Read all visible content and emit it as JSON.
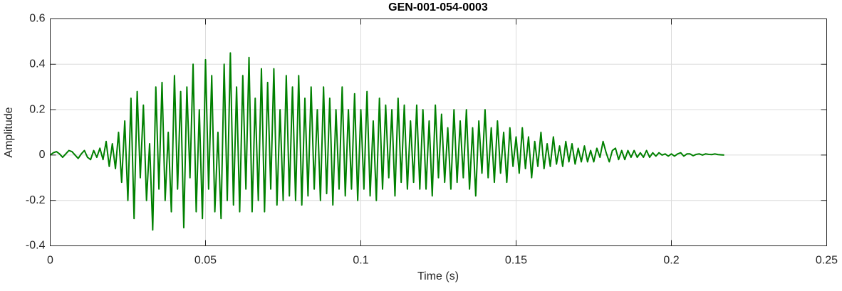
{
  "chart_data": {
    "type": "line",
    "title": "GEN-001-054-0003",
    "x_label": "Time (s)",
    "y_label": "Amplitude",
    "color": "#008000",
    "grid": true,
    "xlim": [
      0,
      0.25
    ],
    "ylim": [
      -0.4,
      0.6
    ],
    "xticks": [
      0,
      0.05,
      0.1,
      0.15,
      0.2,
      0.25
    ],
    "yticks": [
      -0.4,
      -0.2,
      0,
      0.2,
      0.4,
      0.6
    ],
    "x": [
      0,
      0.001,
      0.002,
      0.003,
      0.004,
      0.005,
      0.006,
      0.007,
      0.008,
      0.009,
      0.01,
      0.011,
      0.012,
      0.013,
      0.014,
      0.015,
      0.016,
      0.017,
      0.018,
      0.019,
      0.02,
      0.021,
      0.022,
      0.023,
      0.024,
      0.025,
      0.026,
      0.027,
      0.028,
      0.029,
      0.03,
      0.031,
      0.032,
      0.033,
      0.034,
      0.035,
      0.036,
      0.037,
      0.038,
      0.039,
      0.04,
      0.041,
      0.042,
      0.043,
      0.044,
      0.045,
      0.046,
      0.047,
      0.048,
      0.049,
      0.05,
      0.051,
      0.052,
      0.053,
      0.054,
      0.055,
      0.056,
      0.057,
      0.058,
      0.059,
      0.06,
      0.061,
      0.062,
      0.063,
      0.064,
      0.065,
      0.066,
      0.067,
      0.068,
      0.069,
      0.07,
      0.071,
      0.072,
      0.073,
      0.074,
      0.075,
      0.076,
      0.077,
      0.078,
      0.079,
      0.08,
      0.081,
      0.082,
      0.083,
      0.084,
      0.085,
      0.086,
      0.087,
      0.088,
      0.089,
      0.09,
      0.091,
      0.092,
      0.093,
      0.094,
      0.095,
      0.096,
      0.097,
      0.098,
      0.099,
      0.1,
      0.101,
      0.102,
      0.103,
      0.104,
      0.105,
      0.106,
      0.107,
      0.108,
      0.109,
      0.11,
      0.111,
      0.112,
      0.113,
      0.114,
      0.115,
      0.116,
      0.117,
      0.118,
      0.119,
      0.12,
      0.121,
      0.122,
      0.123,
      0.124,
      0.125,
      0.126,
      0.127,
      0.128,
      0.129,
      0.13,
      0.131,
      0.132,
      0.133,
      0.134,
      0.135,
      0.136,
      0.137,
      0.138,
      0.139,
      0.14,
      0.141,
      0.142,
      0.143,
      0.144,
      0.145,
      0.146,
      0.147,
      0.148,
      0.149,
      0.15,
      0.151,
      0.152,
      0.153,
      0.154,
      0.155,
      0.156,
      0.157,
      0.158,
      0.159,
      0.16,
      0.161,
      0.162,
      0.163,
      0.164,
      0.165,
      0.166,
      0.167,
      0.168,
      0.169,
      0.17,
      0.171,
      0.172,
      0.173,
      0.174,
      0.175,
      0.176,
      0.177,
      0.178,
      0.179,
      0.18,
      0.181,
      0.182,
      0.183,
      0.184,
      0.185,
      0.186,
      0.187,
      0.188,
      0.189,
      0.19,
      0.191,
      0.192,
      0.193,
      0.194,
      0.195,
      0.196,
      0.197,
      0.198,
      0.199,
      0.2,
      0.201,
      0.202,
      0.203,
      0.204,
      0.205,
      0.206,
      0.207,
      0.208,
      0.209,
      0.21,
      0.211,
      0.212,
      0.213,
      0.214,
      0.215,
      0.216,
      0.217
    ],
    "values": [
      0,
      0.01,
      0.015,
      0.005,
      -0.01,
      0.005,
      0.02,
      0.015,
      0,
      -0.015,
      0.005,
      0.02,
      -0.01,
      -0.02,
      0.02,
      -0.01,
      0.03,
      -0.02,
      0.06,
      -0.05,
      0.05,
      -0.06,
      0.1,
      -0.12,
      0.15,
      -0.2,
      0.25,
      -0.28,
      0.28,
      -0.1,
      0.22,
      -0.2,
      0.05,
      -0.33,
      0.3,
      -0.15,
      0.32,
      -0.2,
      0.1,
      -0.25,
      0.35,
      -0.15,
      0.28,
      -0.32,
      0.3,
      -0.1,
      0.4,
      -0.25,
      0.2,
      -0.28,
      0.42,
      -0.15,
      0.35,
      -0.25,
      0.1,
      -0.28,
      0.4,
      -0.2,
      0.45,
      -0.22,
      0.3,
      -0.25,
      0.35,
      -0.15,
      0.43,
      -0.25,
      0.25,
      -0.2,
      0.38,
      -0.25,
      0.32,
      -0.15,
      0.38,
      -0.22,
      0.2,
      -0.2,
      0.35,
      -0.18,
      0.3,
      -0.2,
      0.35,
      -0.22,
      0.25,
      -0.18,
      0.3,
      -0.15,
      0.2,
      -0.2,
      0.3,
      -0.17,
      0.25,
      -0.22,
      0.2,
      -0.15,
      0.3,
      -0.18,
      0.2,
      -0.15,
      0.27,
      -0.2,
      0.2,
      -0.15,
      0.28,
      -0.18,
      0.15,
      -0.2,
      0.25,
      -0.15,
      0.22,
      -0.1,
      0.2,
      -0.18,
      0.25,
      -0.12,
      0.22,
      -0.15,
      0.15,
      -0.12,
      0.22,
      -0.15,
      0.2,
      -0.15,
      0.15,
      -0.18,
      0.22,
      -0.1,
      0.18,
      -0.12,
      0.12,
      -0.15,
      0.2,
      -0.12,
      0.15,
      -0.1,
      0.2,
      -0.15,
      0.12,
      -0.18,
      0.15,
      -0.08,
      0.2,
      -0.1,
      0.12,
      -0.12,
      0.15,
      -0.08,
      0.1,
      -0.12,
      0.12,
      -0.05,
      0.08,
      -0.08,
      0.12,
      -0.06,
      0.08,
      -0.1,
      0.06,
      -0.05,
      0.1,
      -0.06,
      0.05,
      -0.05,
      0.08,
      -0.04,
      0.04,
      -0.05,
      0.06,
      -0.03,
      0.05,
      -0.04,
      0.03,
      -0.03,
      0.04,
      -0.03,
      0.02,
      -0.03,
      0.03,
      -0.01,
      0.06,
      0.01,
      -0.03,
      0.02,
      0.03,
      -0.02,
      0.02,
      -0.02,
      0.02,
      -0.01,
      0.02,
      -0.01,
      0.01,
      -0.01,
      0.02,
      -0.01,
      0.01,
      -0.005,
      0.01,
      0,
      0.005,
      -0.005,
      0.005,
      -0.005,
      0.005,
      0.01,
      -0.005,
      0.005,
      0.005,
      -0.003,
      0.003,
      0.005,
      0,
      0.005,
      0.003,
      0.002,
      0.005,
      0.002,
      0.001,
      0
    ]
  }
}
